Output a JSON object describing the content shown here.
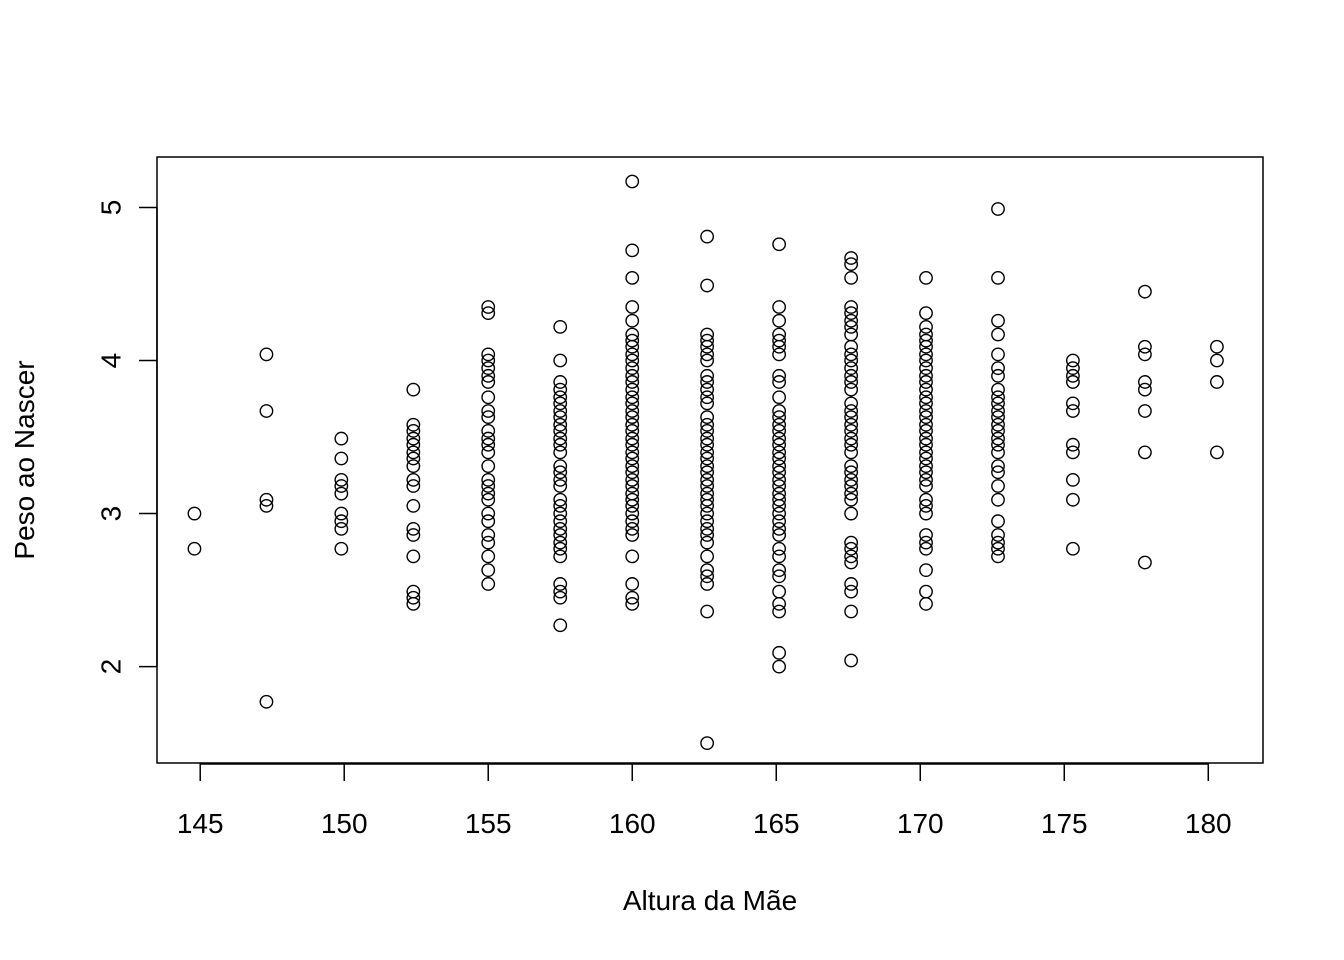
{
  "chart_data": {
    "type": "scatter",
    "title": "",
    "xlabel": "Altura da Mãe",
    "ylabel": "Peso ao Nascer",
    "xlim": [
      143.5,
      181.9
    ],
    "ylim": [
      1.37,
      5.33
    ],
    "xticks": [
      145,
      150,
      155,
      160,
      165,
      170,
      175,
      180
    ],
    "yticks": [
      2,
      3,
      4,
      5
    ],
    "grid": false,
    "legend": "none",
    "marker": "open-circle",
    "colors": {
      "point": "#000000",
      "axis": "#000000",
      "background": "#ffffff"
    },
    "series": [
      {
        "groups": [
          {
            "x": 144.8,
            "y": [
              2.77,
              3.0
            ]
          },
          {
            "x": 147.3,
            "y": [
              1.77,
              3.05,
              3.09,
              3.67,
              4.04
            ]
          },
          {
            "x": 149.9,
            "y": [
              2.77,
              2.9,
              2.95,
              3.0,
              3.13,
              3.18,
              3.22,
              3.36,
              3.49
            ]
          },
          {
            "x": 152.4,
            "y": [
              2.41,
              2.45,
              2.49,
              2.72,
              2.86,
              2.9,
              3.05,
              3.18,
              3.22,
              3.31,
              3.36,
              3.4,
              3.45,
              3.49,
              3.54,
              3.58,
              3.81
            ]
          },
          {
            "x": 155.0,
            "y": [
              2.54,
              2.63,
              2.72,
              2.81,
              2.86,
              2.95,
              3.0,
              3.09,
              3.13,
              3.18,
              3.22,
              3.31,
              3.4,
              3.45,
              3.49,
              3.54,
              3.63,
              3.67,
              3.76,
              3.86,
              3.9,
              3.95,
              4.0,
              4.04,
              4.31,
              4.35
            ]
          },
          {
            "x": 157.5,
            "y": [
              2.27,
              2.45,
              2.49,
              2.54,
              2.72,
              2.77,
              2.81,
              2.86,
              2.9,
              2.95,
              3.0,
              3.05,
              3.09,
              3.18,
              3.22,
              3.27,
              3.31,
              3.4,
              3.45,
              3.49,
              3.54,
              3.58,
              3.63,
              3.67,
              3.72,
              3.76,
              3.81,
              3.86,
              4.0,
              4.22
            ]
          },
          {
            "x": 160.0,
            "y": [
              2.41,
              2.45,
              2.54,
              2.72,
              2.86,
              2.9,
              2.95,
              3.0,
              3.05,
              3.09,
              3.13,
              3.18,
              3.22,
              3.27,
              3.31,
              3.36,
              3.4,
              3.45,
              3.49,
              3.54,
              3.58,
              3.63,
              3.67,
              3.72,
              3.76,
              3.81,
              3.86,
              3.9,
              3.95,
              4.0,
              4.04,
              4.09,
              4.13,
              4.17,
              4.26,
              4.35,
              4.54,
              4.72,
              5.17
            ]
          },
          {
            "x": 162.6,
            "y": [
              1.5,
              2.36,
              2.54,
              2.59,
              2.63,
              2.72,
              2.81,
              2.86,
              2.9,
              2.95,
              3.0,
              3.05,
              3.09,
              3.13,
              3.18,
              3.22,
              3.27,
              3.31,
              3.36,
              3.4,
              3.45,
              3.49,
              3.54,
              3.58,
              3.63,
              3.72,
              3.76,
              3.81,
              3.86,
              3.9,
              4.0,
              4.04,
              4.09,
              4.13,
              4.17,
              4.49,
              4.81
            ]
          },
          {
            "x": 165.1,
            "y": [
              2.0,
              2.09,
              2.36,
              2.41,
              2.49,
              2.59,
              2.63,
              2.72,
              2.77,
              2.86,
              2.9,
              2.95,
              3.0,
              3.05,
              3.09,
              3.13,
              3.18,
              3.22,
              3.27,
              3.31,
              3.36,
              3.4,
              3.45,
              3.49,
              3.54,
              3.58,
              3.63,
              3.67,
              3.76,
              3.86,
              3.9,
              4.04,
              4.09,
              4.13,
              4.17,
              4.26,
              4.35,
              4.76
            ]
          },
          {
            "x": 167.6,
            "y": [
              2.04,
              2.36,
              2.49,
              2.54,
              2.68,
              2.72,
              2.77,
              2.81,
              3.0,
              3.09,
              3.13,
              3.18,
              3.22,
              3.27,
              3.31,
              3.4,
              3.45,
              3.49,
              3.54,
              3.58,
              3.63,
              3.67,
              3.72,
              3.81,
              3.86,
              3.9,
              3.95,
              4.0,
              4.04,
              4.09,
              4.17,
              4.22,
              4.26,
              4.31,
              4.35,
              4.54,
              4.63,
              4.67
            ]
          },
          {
            "x": 170.2,
            "y": [
              2.41,
              2.49,
              2.63,
              2.77,
              2.81,
              2.86,
              3.0,
              3.05,
              3.09,
              3.18,
              3.22,
              3.27,
              3.31,
              3.36,
              3.4,
              3.45,
              3.49,
              3.54,
              3.58,
              3.63,
              3.67,
              3.72,
              3.76,
              3.81,
              3.86,
              3.9,
              3.95,
              4.0,
              4.04,
              4.09,
              4.13,
              4.17,
              4.22,
              4.31,
              4.54
            ]
          },
          {
            "x": 172.7,
            "y": [
              2.72,
              2.77,
              2.81,
              2.86,
              2.95,
              3.09,
              3.18,
              3.27,
              3.31,
              3.4,
              3.45,
              3.49,
              3.54,
              3.58,
              3.63,
              3.67,
              3.72,
              3.76,
              3.81,
              3.9,
              3.95,
              4.04,
              4.17,
              4.26,
              4.54,
              4.99
            ]
          },
          {
            "x": 175.3,
            "y": [
              2.77,
              3.09,
              3.22,
              3.4,
              3.45,
              3.67,
              3.72,
              3.86,
              3.9,
              3.95,
              4.0
            ]
          },
          {
            "x": 177.8,
            "y": [
              2.68,
              3.4,
              3.67,
              3.81,
              3.86,
              4.04,
              4.09,
              4.45
            ]
          },
          {
            "x": 180.3,
            "y": [
              3.4,
              3.86,
              4.0,
              4.09
            ]
          }
        ]
      }
    ]
  }
}
